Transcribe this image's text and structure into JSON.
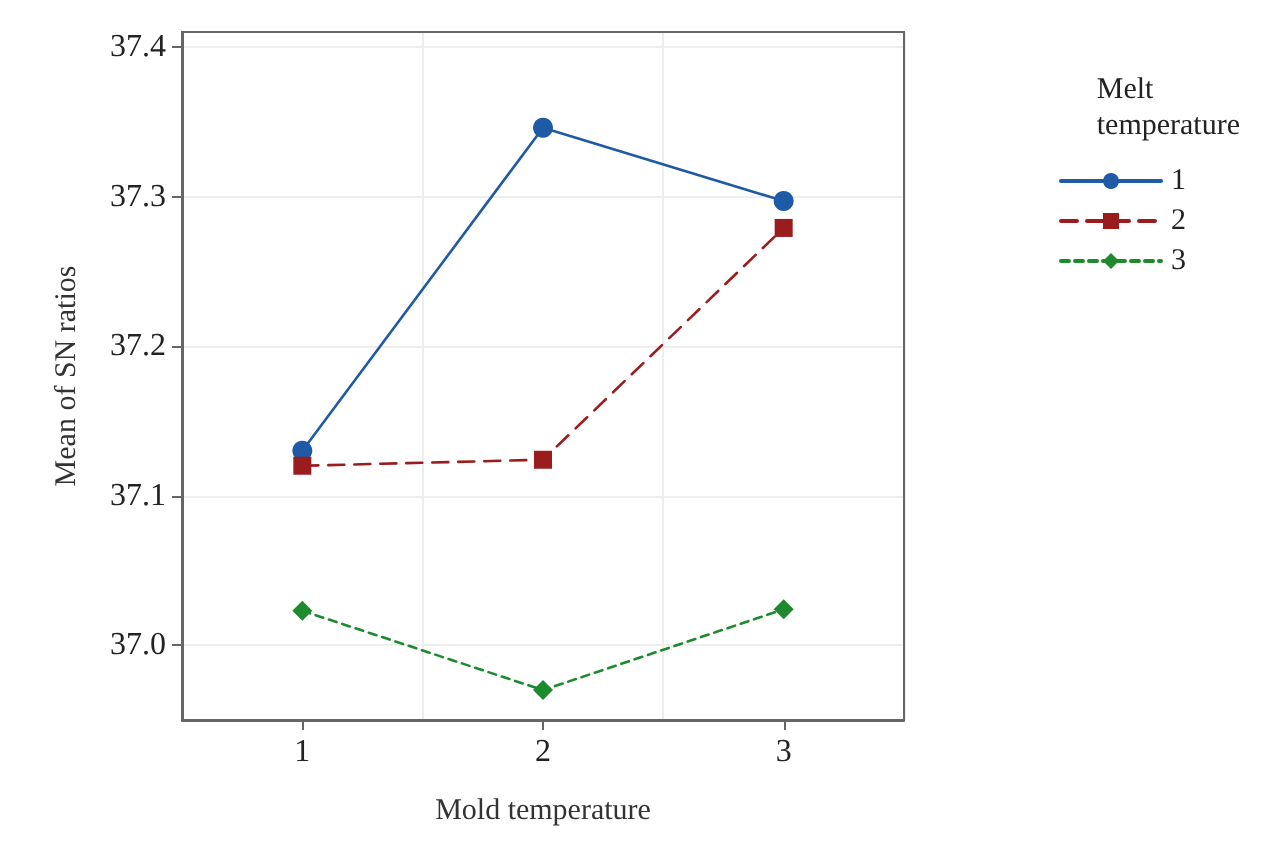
{
  "chart_data": {
    "type": "line",
    "xlabel": "Mold temperature",
    "ylabel": "Mean of SN ratios",
    "legend_title": "Melt temperature",
    "categories": [
      "1",
      "2",
      "3"
    ],
    "ylim": [
      36.95,
      37.41
    ],
    "yticks": [
      {
        "value": 37.0,
        "label": "37.0"
      },
      {
        "value": 37.1,
        "label": "37.1"
      },
      37.2,
      37.3,
      37.4
    ],
    "grid": true,
    "legend": "right",
    "series": [
      {
        "name": "1",
        "color": "#1f5aa6",
        "values": [
          37.13,
          37.346,
          37.297
        ],
        "marker": "circle",
        "line_style": "solid"
      },
      {
        "name": "2",
        "color": "#9b1c1c",
        "values": [
          37.12,
          37.124,
          37.279
        ],
        "marker": "square",
        "line_style": "dashed"
      },
      {
        "name": "3",
        "color": "#1e8a2e",
        "values": [
          37.023,
          36.97,
          37.024
        ],
        "marker": "diamond",
        "line_style": "dotted"
      }
    ]
  }
}
